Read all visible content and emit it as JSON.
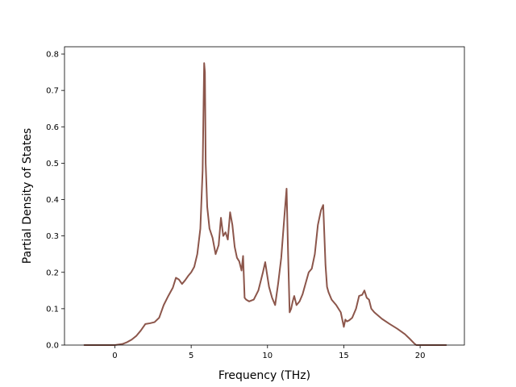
{
  "chart_data": {
    "type": "line",
    "title": "",
    "xlabel": "Frequency (THz)",
    "ylabel": "Partial Density of States",
    "xlim": [
      -3.3,
      22.9
    ],
    "ylim": [
      0.0,
      0.82
    ],
    "xticks": [
      0,
      5,
      10,
      15,
      20
    ],
    "xtick_labels": [
      "0",
      "5",
      "10",
      "15",
      "20"
    ],
    "yticks": [
      0.0,
      0.1,
      0.2,
      0.3,
      0.4,
      0.5,
      0.6,
      0.7,
      0.8
    ],
    "ytick_labels": [
      "0.0",
      "0.1",
      "0.2",
      "0.3",
      "0.4",
      "0.5",
      "0.6",
      "0.7",
      "0.8"
    ],
    "grid": false,
    "legend": "none",
    "line_color": "#8c564b",
    "series": [
      {
        "x": [
          -2.0,
          -0.5,
          0.0,
          0.5,
          0.8,
          1.1,
          1.4,
          1.7,
          2.0,
          2.3,
          2.6,
          2.9,
          3.2,
          3.5,
          3.8,
          4.0,
          4.2,
          4.4,
          4.6,
          4.8,
          5.0,
          5.2,
          5.4,
          5.6,
          5.75,
          5.85,
          5.9,
          5.95,
          6.05,
          6.2,
          6.4,
          6.6,
          6.8,
          6.95,
          7.1,
          7.25,
          7.4,
          7.55,
          7.7,
          7.85,
          8.0,
          8.15,
          8.3,
          8.4,
          8.5,
          8.6,
          8.8,
          9.1,
          9.4,
          9.7,
          9.85,
          9.95,
          10.1,
          10.3,
          10.5,
          10.7,
          10.9,
          11.1,
          11.25,
          11.35,
          11.45,
          11.55,
          11.65,
          11.75,
          11.9,
          12.1,
          12.3,
          12.5,
          12.7,
          12.9,
          13.1,
          13.3,
          13.5,
          13.65,
          13.8,
          13.9,
          14.0,
          14.2,
          14.5,
          14.8,
          15.0,
          15.1,
          15.2,
          15.35,
          15.55,
          15.8,
          16.0,
          16.2,
          16.35,
          16.5,
          16.65,
          16.8,
          17.0,
          17.5,
          18.0,
          18.5,
          19.0,
          19.3,
          19.6,
          19.75,
          20.0,
          21.0,
          21.7
        ],
        "y": [
          0.0,
          0.0,
          0.0,
          0.003,
          0.008,
          0.015,
          0.025,
          0.04,
          0.058,
          0.06,
          0.063,
          0.075,
          0.11,
          0.135,
          0.158,
          0.185,
          0.18,
          0.168,
          0.178,
          0.19,
          0.2,
          0.215,
          0.25,
          0.32,
          0.48,
          0.775,
          0.75,
          0.5,
          0.38,
          0.32,
          0.295,
          0.25,
          0.275,
          0.35,
          0.3,
          0.31,
          0.29,
          0.365,
          0.33,
          0.27,
          0.24,
          0.23,
          0.205,
          0.245,
          0.13,
          0.125,
          0.12,
          0.125,
          0.15,
          0.2,
          0.228,
          0.2,
          0.16,
          0.13,
          0.11,
          0.17,
          0.24,
          0.35,
          0.43,
          0.25,
          0.09,
          0.1,
          0.12,
          0.135,
          0.11,
          0.12,
          0.14,
          0.17,
          0.2,
          0.21,
          0.25,
          0.33,
          0.37,
          0.385,
          0.22,
          0.16,
          0.145,
          0.125,
          0.11,
          0.09,
          0.05,
          0.07,
          0.065,
          0.068,
          0.075,
          0.1,
          0.135,
          0.138,
          0.15,
          0.13,
          0.125,
          0.1,
          0.09,
          0.072,
          0.058,
          0.045,
          0.03,
          0.018,
          0.005,
          0.0,
          0.0,
          0.0,
          0.0
        ]
      }
    ]
  }
}
